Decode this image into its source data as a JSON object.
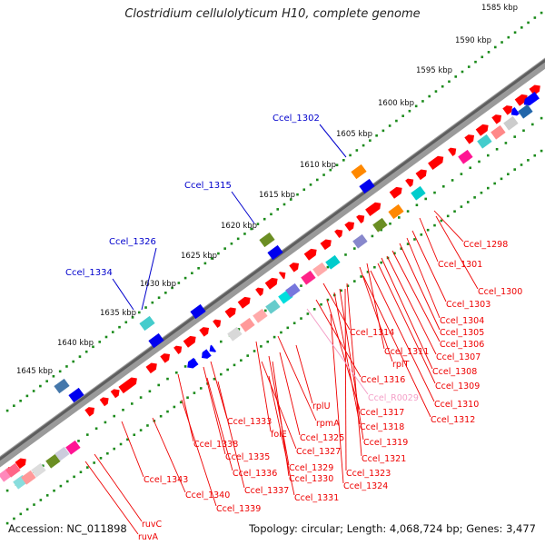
{
  "title": "Clostridium cellulolyticum H10, complete genome",
  "footer": {
    "accession": "Accession: NC_011898",
    "summary": "Topology: circular; Length: 4,068,724 bp; Genes: 3,477"
  },
  "colors": {
    "forward_gene": "#ff0000",
    "reverse_gene": "#0000ff",
    "label_red": "#ee0000",
    "label_blue": "#0000cc",
    "label_pink": "#f4a0c8",
    "ruler_dots": "#1a8a1a",
    "backbone": "#777777"
  },
  "ruler_ticks": [
    "1585 kbp",
    "1590 kbp",
    "1595 kbp",
    "1600 kbp",
    "1605 kbp",
    "1610 kbp",
    "1615 kbp",
    "1620 kbp",
    "1625 kbp",
    "1630 kbp",
    "1635 kbp",
    "1640 kbp",
    "1645 kbp"
  ],
  "blue_labels": [
    "Ccel_1302",
    "Ccel_1315",
    "Ccel_1326",
    "Ccel_1334"
  ],
  "red_labels": [
    "Ccel_1298",
    "Ccel_1301",
    "Ccel_1300",
    "Ccel_1303",
    "Ccel_1304",
    "Ccel_1305",
    "Ccel_1306",
    "Ccel_1307",
    "Ccel_1314",
    "Ccel_1311",
    "rplT",
    "Ccel_1308",
    "Ccel_1309",
    "Ccel_1316",
    "Ccel_1310",
    "rplU",
    "Ccel_1317",
    "Ccel_1312",
    "rpmA",
    "Ccel_1318",
    "Ccel_1333",
    "Ccel_1325",
    "folE",
    "Ccel_1319",
    "Ccel_1338",
    "Ccel_1327",
    "Ccel_1321",
    "Ccel_1335",
    "Ccel_1329",
    "Ccel_1323",
    "Ccel_1336",
    "Ccel_1330",
    "Ccel_1343",
    "Ccel_1324",
    "Ccel_1337",
    "Ccel_1340",
    "Ccel_1331",
    "Ccel_1339",
    "ruvC",
    "ruvA"
  ],
  "pink_labels": [
    "Ccel_R0029"
  ]
}
